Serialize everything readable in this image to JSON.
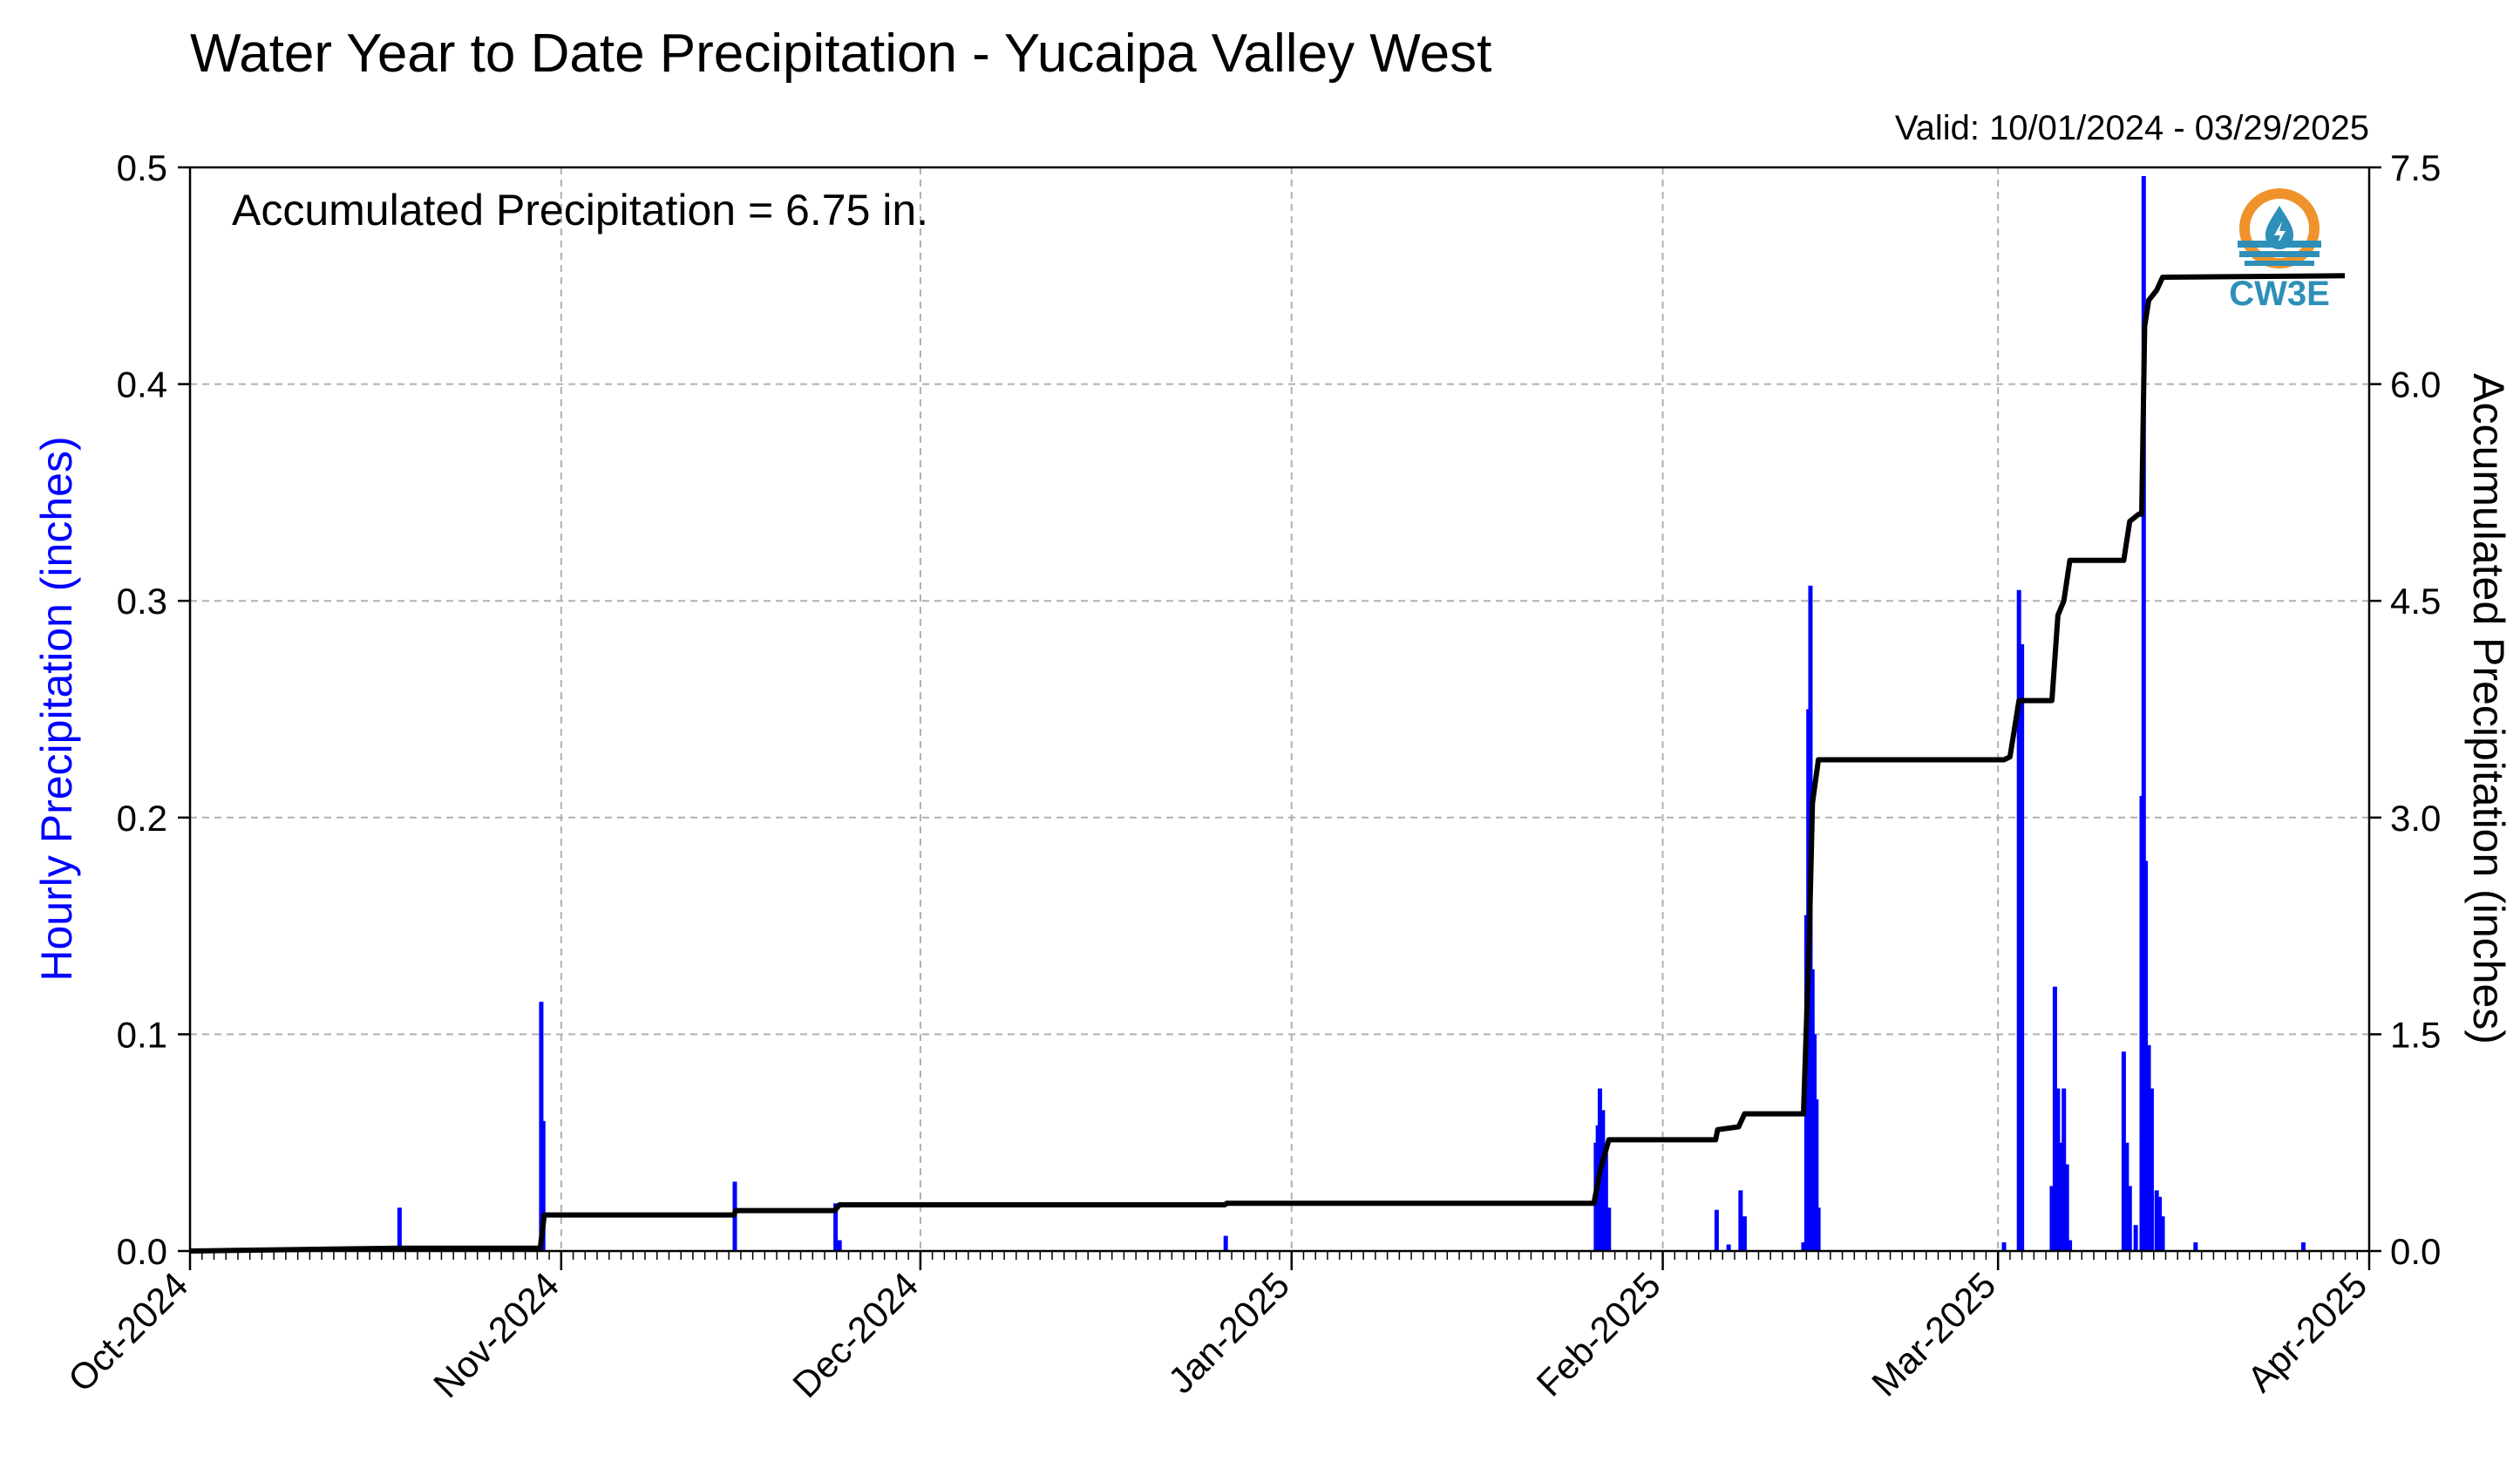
{
  "chart_data": {
    "type": "bar+line",
    "title": "Water Year to Date Precipitation - Yucaipa Valley West",
    "subtitle": "Valid: 10/01/2024 - 03/29/2025",
    "annotation": "Accumulated Precipitation = 6.75 in.",
    "logo_text": "CW3E",
    "ylabel_left": "Hourly Precipitation (inches)",
    "ylabel_right": "Accumulated Precipitation (inches)",
    "ylim_left": [
      0,
      0.5
    ],
    "ylim_right": [
      0,
      7.5
    ],
    "xlim": [
      "2024-10-01",
      "2025-04-01"
    ],
    "grid": true,
    "x_ticks": [
      {
        "label": "Oct-2024",
        "date": "2024-10-01"
      },
      {
        "label": "Nov-2024",
        "date": "2024-11-01"
      },
      {
        "label": "Dec-2024",
        "date": "2024-12-01"
      },
      {
        "label": "Jan-2025",
        "date": "2025-01-01"
      },
      {
        "label": "Feb-2025",
        "date": "2025-02-01"
      },
      {
        "label": "Mar-2025",
        "date": "2025-03-01"
      },
      {
        "label": "Apr-2025",
        "date": "2025-04-01"
      }
    ],
    "y_ticks_left": [
      "0.0",
      "0.1",
      "0.2",
      "0.3",
      "0.4",
      "0.5"
    ],
    "y_ticks_right": [
      "0.0",
      "1.5",
      "3.0",
      "4.5",
      "6.0",
      "7.5"
    ],
    "colors": {
      "hourly": "#0000ff",
      "accumulated": "#000000",
      "left_axis_label": "#0000ff",
      "grid": "#b0b0b0",
      "logo_orange": "#f0922b",
      "logo_blue": "#2e8fb8"
    },
    "series": [
      {
        "name": "Hourly Precipitation",
        "axis": "left",
        "style": "bar",
        "points": [
          {
            "x": "2024-10-18T12:00",
            "y": 0.02
          },
          {
            "x": "2024-10-30T08:00",
            "y": 0.115
          },
          {
            "x": "2024-10-30T12:00",
            "y": 0.06
          },
          {
            "x": "2024-11-15T12:00",
            "y": 0.032
          },
          {
            "x": "2024-11-23T22:00",
            "y": 0.022
          },
          {
            "x": "2024-11-24T06:00",
            "y": 0.005
          },
          {
            "x": "2024-12-26T12:00",
            "y": 0.007
          },
          {
            "x": "2025-01-26T10:00",
            "y": 0.05
          },
          {
            "x": "2025-01-26T14:00",
            "y": 0.058
          },
          {
            "x": "2025-01-26T18:00",
            "y": 0.075
          },
          {
            "x": "2025-01-27T00:00",
            "y": 0.065
          },
          {
            "x": "2025-01-27T06:00",
            "y": 0.045
          },
          {
            "x": "2025-01-27T12:00",
            "y": 0.02
          },
          {
            "x": "2025-02-05T12:00",
            "y": 0.019
          },
          {
            "x": "2025-02-06T12:00",
            "y": 0.003
          },
          {
            "x": "2025-02-07T12:00",
            "y": 0.028
          },
          {
            "x": "2025-02-07T20:00",
            "y": 0.016
          },
          {
            "x": "2025-02-12T18:00",
            "y": 0.004
          },
          {
            "x": "2025-02-13T00:00",
            "y": 0.155
          },
          {
            "x": "2025-02-13T04:00",
            "y": 0.25
          },
          {
            "x": "2025-02-13T08:00",
            "y": 0.307
          },
          {
            "x": "2025-02-13T12:00",
            "y": 0.13
          },
          {
            "x": "2025-02-13T16:00",
            "y": 0.1
          },
          {
            "x": "2025-02-13T20:00",
            "y": 0.07
          },
          {
            "x": "2025-02-14T00:00",
            "y": 0.02
          },
          {
            "x": "2025-03-01T12:00",
            "y": 0.004
          },
          {
            "x": "2025-03-02T18:00",
            "y": 0.305
          },
          {
            "x": "2025-03-03T00:00",
            "y": 0.28
          },
          {
            "x": "2025-03-05T12:00",
            "y": 0.03
          },
          {
            "x": "2025-03-05T18:00",
            "y": 0.122
          },
          {
            "x": "2025-03-06T00:00",
            "y": 0.075
          },
          {
            "x": "2025-03-06T06:00",
            "y": 0.05
          },
          {
            "x": "2025-03-06T12:00",
            "y": 0.075
          },
          {
            "x": "2025-03-06T18:00",
            "y": 0.04
          },
          {
            "x": "2025-03-07T00:00",
            "y": 0.005
          },
          {
            "x": "2025-03-11T12:00",
            "y": 0.092
          },
          {
            "x": "2025-03-11T18:00",
            "y": 0.05
          },
          {
            "x": "2025-03-12T00:00",
            "y": 0.03
          },
          {
            "x": "2025-03-12T12:00",
            "y": 0.012
          },
          {
            "x": "2025-03-13T00:00",
            "y": 0.21
          },
          {
            "x": "2025-03-13T04:00",
            "y": 0.496
          },
          {
            "x": "2025-03-13T08:00",
            "y": 0.18
          },
          {
            "x": "2025-03-13T14:00",
            "y": 0.095
          },
          {
            "x": "2025-03-13T20:00",
            "y": 0.075
          },
          {
            "x": "2025-03-14T06:00",
            "y": 0.028
          },
          {
            "x": "2025-03-14T12:00",
            "y": 0.025
          },
          {
            "x": "2025-03-14T18:00",
            "y": 0.016
          },
          {
            "x": "2025-03-17T12:00",
            "y": 0.004
          },
          {
            "x": "2025-03-26T12:00",
            "y": 0.004
          }
        ]
      },
      {
        "name": "Accumulated Precipitation",
        "axis": "right",
        "style": "step-line",
        "points": [
          {
            "x": "2024-10-01T00:00",
            "y": 0.0
          },
          {
            "x": "2024-10-18T12:00",
            "y": 0.02
          },
          {
            "x": "2024-10-30T06:00",
            "y": 0.02
          },
          {
            "x": "2024-10-30T14:00",
            "y": 0.25
          },
          {
            "x": "2024-11-15T10:00",
            "y": 0.25
          },
          {
            "x": "2024-11-15T14:00",
            "y": 0.28
          },
          {
            "x": "2024-11-23T20:00",
            "y": 0.28
          },
          {
            "x": "2024-11-24T06:00",
            "y": 0.32
          },
          {
            "x": "2024-12-26T10:00",
            "y": 0.32
          },
          {
            "x": "2024-12-26T14:00",
            "y": 0.33
          },
          {
            "x": "2025-01-26T06:00",
            "y": 0.33
          },
          {
            "x": "2025-01-26T18:00",
            "y": 0.55
          },
          {
            "x": "2025-01-27T12:00",
            "y": 0.77
          },
          {
            "x": "2025-02-05T10:00",
            "y": 0.77
          },
          {
            "x": "2025-02-05T14:00",
            "y": 0.84
          },
          {
            "x": "2025-02-07T08:00",
            "y": 0.86
          },
          {
            "x": "2025-02-07T20:00",
            "y": 0.95
          },
          {
            "x": "2025-02-12T18:00",
            "y": 0.95
          },
          {
            "x": "2025-02-13T06:00",
            "y": 2.2
          },
          {
            "x": "2025-02-13T12:00",
            "y": 3.1
          },
          {
            "x": "2025-02-14T00:00",
            "y": 3.4
          },
          {
            "x": "2025-03-01T12:00",
            "y": 3.4
          },
          {
            "x": "2025-03-02T00:00",
            "y": 3.42
          },
          {
            "x": "2025-03-02T18:00",
            "y": 3.81
          },
          {
            "x": "2025-03-05T12:00",
            "y": 3.81
          },
          {
            "x": "2025-03-06T00:00",
            "y": 4.4
          },
          {
            "x": "2025-03-06T12:00",
            "y": 4.5
          },
          {
            "x": "2025-03-07T00:00",
            "y": 4.78
          },
          {
            "x": "2025-03-11T12:00",
            "y": 4.78
          },
          {
            "x": "2025-03-12T00:00",
            "y": 5.05
          },
          {
            "x": "2025-03-12T18:00",
            "y": 5.1
          },
          {
            "x": "2025-03-13T00:00",
            "y": 5.1
          },
          {
            "x": "2025-03-13T06:00",
            "y": 6.4
          },
          {
            "x": "2025-03-13T14:00",
            "y": 6.58
          },
          {
            "x": "2025-03-14T06:00",
            "y": 6.65
          },
          {
            "x": "2025-03-14T18:00",
            "y": 6.74
          },
          {
            "x": "2025-03-29T23:00",
            "y": 6.75
          }
        ]
      }
    ]
  }
}
